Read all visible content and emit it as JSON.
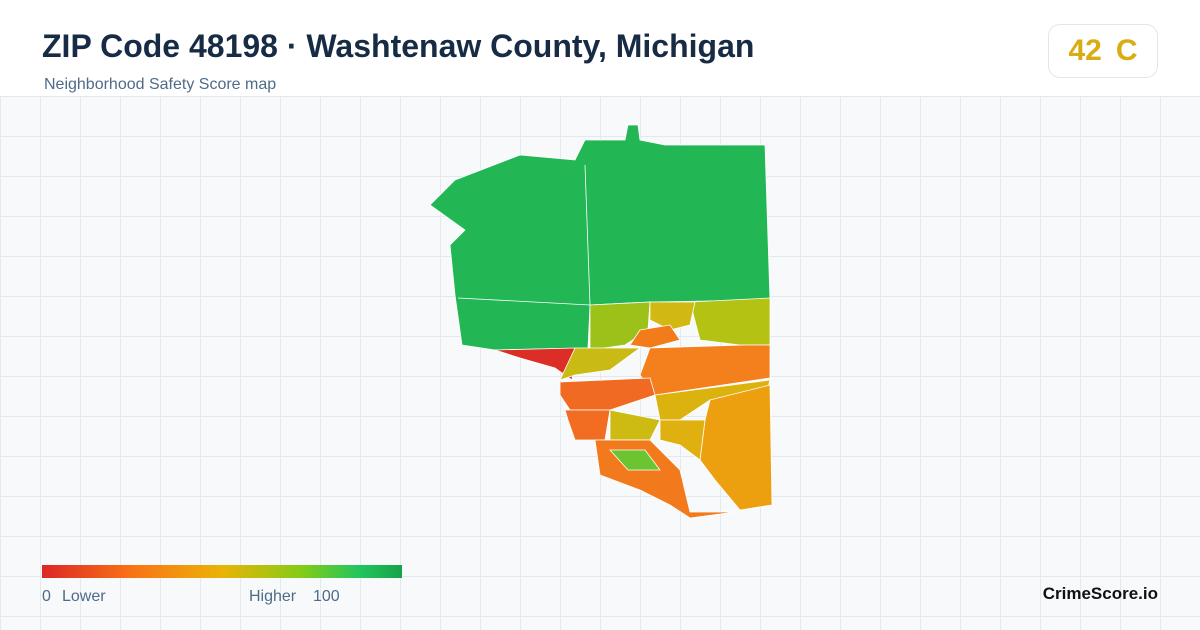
{
  "header": {
    "title": "ZIP Code 48198 · Washtenaw County, Michigan",
    "subtitle": "Neighborhood Safety Score map"
  },
  "badge": {
    "score": 42,
    "grade": "C"
  },
  "legend": {
    "min": 0,
    "min_label": "Lower",
    "max_label": "Higher",
    "max": 100
  },
  "brand": "CrimeScore.io"
}
